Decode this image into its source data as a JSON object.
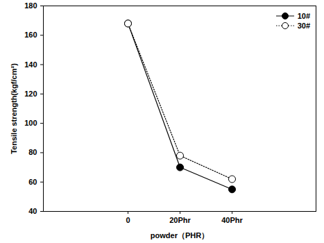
{
  "chart_data": {
    "type": "line",
    "x_label": "powder（PHR）",
    "y_label": "Tensile strength(kgf/cm²)",
    "categories": [
      "0",
      "20Phr",
      "40Phr"
    ],
    "series": [
      {
        "name": "10#",
        "color": "#000000",
        "marker": "circle",
        "line_style": "solid",
        "values": [
          168,
          70,
          55
        ]
      },
      {
        "name": "30#",
        "color": "#000000",
        "marker": "circle-open",
        "line_style": "dotted",
        "values": [
          168,
          78,
          62
        ]
      }
    ],
    "ylim": [
      40,
      180
    ],
    "yticks": [
      40,
      60,
      80,
      100,
      120,
      140,
      160,
      180
    ],
    "legend": "top-right",
    "grid": false
  }
}
